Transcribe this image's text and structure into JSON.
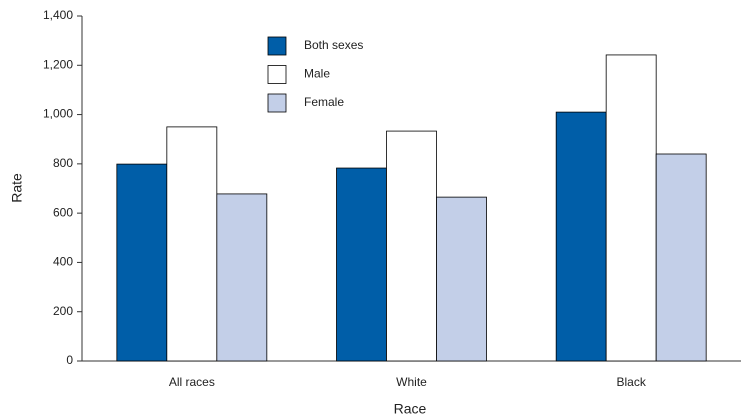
{
  "chart_data": {
    "type": "bar",
    "x_label": "Race",
    "y_label": "Rate",
    "categories": [
      "All races",
      "White",
      "Black"
    ],
    "series": [
      {
        "name": "Both sexes",
        "color": "#005ea8",
        "values": [
          799,
          783,
          1010
        ]
      },
      {
        "name": "Male",
        "color": "#ffffff",
        "values": [
          950,
          933,
          1242
        ]
      },
      {
        "name": "Female",
        "color": "#c3cfe8",
        "values": [
          678,
          665,
          840
        ]
      }
    ],
    "ylim": [
      0,
      1400
    ],
    "yticks": [
      0,
      200,
      400,
      600,
      800,
      {
        "value": 1000,
        "label": "1,000"
      },
      {
        "value": 1200,
        "label": "1,200"
      },
      {
        "value": 1400,
        "label": "1,400"
      }
    ],
    "grid": false
  }
}
